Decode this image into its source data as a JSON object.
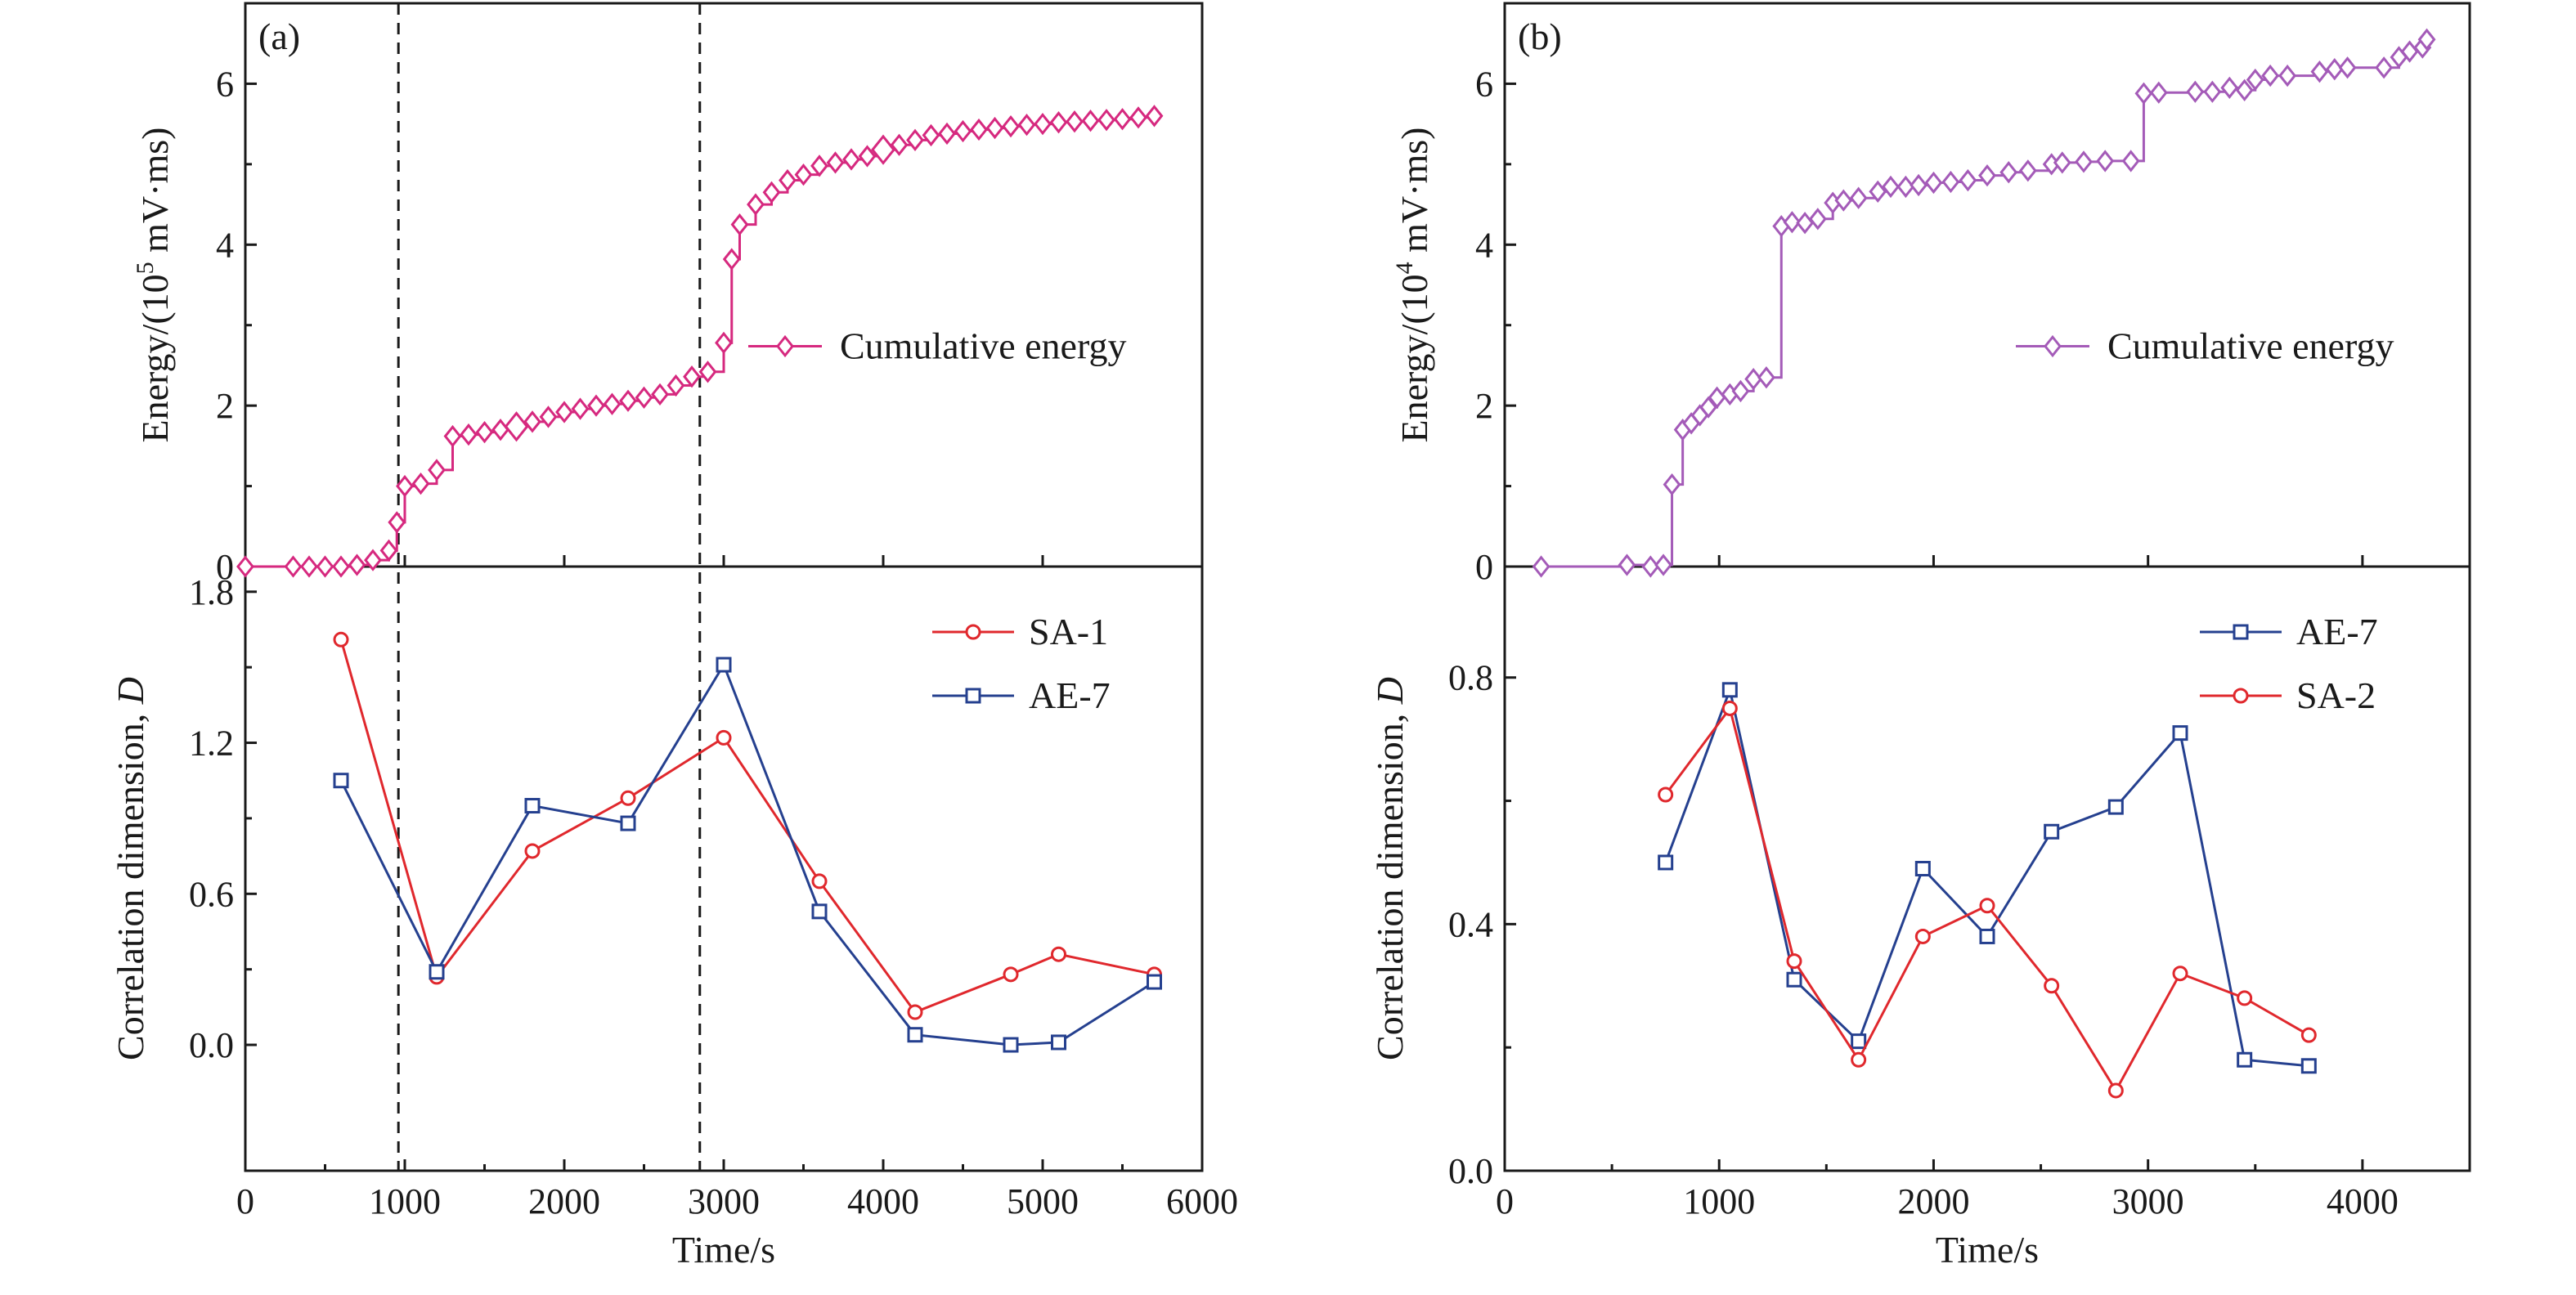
{
  "colors": {
    "energy_a": "#d6297f",
    "energy_b": "#a45bb8",
    "SA": "#e0282d",
    "AE": "#25408f",
    "axis": "#1a1a1a"
  },
  "chart_data": [
    {
      "id": "a",
      "type": "line",
      "panel_label": "(a)",
      "xlabel": "Time/s",
      "xlim": [
        0,
        6000
      ],
      "xticks": [
        0,
        1000,
        2000,
        3000,
        4000,
        5000,
        6000
      ],
      "dashed_lines_x": [
        960,
        2850
      ],
      "top": {
        "ylabel_parts": [
          "Energy/(10",
          "5",
          " mV·ms)"
        ],
        "ylim": [
          0,
          7
        ],
        "yticks": [
          0,
          2,
          4,
          6
        ],
        "series": [
          {
            "name": "Cumulative energy",
            "marker": "diamond",
            "color_key": "energy_a",
            "step": true,
            "big_points": [
              16,
              40
            ],
            "x": [
              0,
              300,
              400,
              500,
              600,
              700,
              800,
              900,
              950,
              1000,
              1100,
              1200,
              1300,
              1400,
              1500,
              1600,
              1700,
              1800,
              1900,
              2000,
              2100,
              2200,
              2300,
              2400,
              2500,
              2600,
              2700,
              2800,
              2900,
              3000,
              3050,
              3100,
              3200,
              3300,
              3400,
              3500,
              3600,
              3700,
              3800,
              3900,
              4000,
              4100,
              4200,
              4300,
              4400,
              4500,
              4600,
              4700,
              4800,
              4900,
              5000,
              5100,
              5200,
              5300,
              5400,
              5500,
              5600,
              5700
            ],
            "y": [
              0.0,
              0.0,
              0.0,
              0.0,
              0.0,
              0.02,
              0.08,
              0.2,
              0.55,
              1.0,
              1.03,
              1.2,
              1.62,
              1.64,
              1.67,
              1.7,
              1.74,
              1.8,
              1.86,
              1.92,
              1.96,
              2.0,
              2.02,
              2.06,
              2.1,
              2.14,
              2.25,
              2.36,
              2.42,
              2.78,
              3.82,
              4.25,
              4.5,
              4.65,
              4.8,
              4.87,
              4.98,
              5.02,
              5.06,
              5.1,
              5.18,
              5.24,
              5.3,
              5.36,
              5.38,
              5.41,
              5.43,
              5.45,
              5.47,
              5.49,
              5.5,
              5.52,
              5.53,
              5.54,
              5.55,
              5.56,
              5.58,
              5.6
            ]
          }
        ],
        "legend": {
          "loc": "right-middle"
        }
      },
      "bottom": {
        "ylabel": "Correlation dimension, ",
        "ylabel_italic": "D",
        "ylim": [
          -0.5,
          1.9
        ],
        "yticks": [
          0.0,
          0.6,
          1.2,
          1.8
        ],
        "ytick_labels": [
          "0.0",
          "0.6",
          "1.2",
          "1.8"
        ],
        "series": [
          {
            "name": "SA-1",
            "marker": "circle",
            "color_key": "SA",
            "x": [
              600,
              1200,
              1800,
              2400,
              3000,
              3600,
              4200,
              4800,
              5100,
              5700
            ],
            "y": [
              1.61,
              0.27,
              0.77,
              0.98,
              1.22,
              0.65,
              0.13,
              0.28,
              0.36,
              0.28
            ]
          },
          {
            "name": "AE-7",
            "marker": "square",
            "color_key": "AE",
            "x": [
              600,
              1200,
              1800,
              2400,
              3000,
              3600,
              4200,
              4800,
              5100,
              5700
            ],
            "y": [
              1.05,
              0.29,
              0.95,
              0.88,
              1.51,
              0.53,
              0.04,
              0.0,
              0.01,
              0.25
            ]
          }
        ],
        "legend": {
          "loc": "top-right"
        }
      }
    },
    {
      "id": "b",
      "type": "line",
      "panel_label": "(b)",
      "xlabel": "Time/s",
      "xlim": [
        0,
        4500
      ],
      "xticks": [
        0,
        1000,
        2000,
        3000,
        4000
      ],
      "dashed_lines_x": [],
      "top": {
        "ylabel_parts": [
          "Energy/(10",
          "4",
          " mV·ms)"
        ],
        "ylim": [
          0,
          7
        ],
        "yticks": [
          0,
          2,
          4,
          6
        ],
        "series": [
          {
            "name": "Cumulative energy",
            "marker": "diamond",
            "color_key": "energy_b",
            "step": true,
            "big_points": [],
            "x": [
              170,
              570,
              680,
              740,
              780,
              830,
              870,
              910,
              950,
              990,
              1050,
              1100,
              1160,
              1220,
              1290,
              1340,
              1400,
              1460,
              1530,
              1580,
              1650,
              1740,
              1800,
              1870,
              1930,
              2000,
              2080,
              2160,
              2250,
              2350,
              2440,
              2550,
              2600,
              2700,
              2800,
              2920,
              2980,
              3050,
              3220,
              3300,
              3380,
              3450,
              3500,
              3570,
              3650,
              3800,
              3870,
              3930,
              4100,
              4170,
              4220,
              4280,
              4300
            ],
            "y": [
              0.0,
              0.02,
              0.0,
              0.02,
              1.02,
              1.7,
              1.78,
              1.88,
              1.98,
              2.1,
              2.14,
              2.18,
              2.33,
              2.35,
              4.23,
              4.28,
              4.27,
              4.32,
              4.52,
              4.55,
              4.58,
              4.66,
              4.72,
              4.72,
              4.74,
              4.77,
              4.78,
              4.8,
              4.86,
              4.9,
              4.92,
              5.0,
              5.02,
              5.03,
              5.04,
              5.04,
              5.88,
              5.89,
              5.9,
              5.9,
              5.95,
              5.92,
              6.05,
              6.1,
              6.1,
              6.15,
              6.18,
              6.2,
              6.2,
              6.33,
              6.4,
              6.45,
              6.55
            ]
          }
        ],
        "legend": {
          "loc": "right-middle"
        }
      },
      "bottom": {
        "ylabel": "Correlation dimension, ",
        "ylabel_italic": "D",
        "ylim": [
          0.0,
          0.98
        ],
        "yticks": [
          0.0,
          0.4,
          0.8
        ],
        "ytick_labels": [
          "0.0",
          "0.4",
          "0.8"
        ],
        "series": [
          {
            "name": "AE-7",
            "marker": "square",
            "color_key": "AE",
            "x": [
              750,
              1050,
              1350,
              1650,
              1950,
              2250,
              2550,
              2850,
              3150,
              3450,
              3750
            ],
            "y": [
              0.5,
              0.78,
              0.31,
              0.21,
              0.49,
              0.38,
              0.55,
              0.59,
              0.71,
              0.18,
              0.17
            ]
          },
          {
            "name": "SA-2",
            "marker": "circle",
            "color_key": "SA",
            "x": [
              750,
              1050,
              1350,
              1650,
              1950,
              2250,
              2550,
              2850,
              3150,
              3450,
              3750
            ],
            "y": [
              0.61,
              0.75,
              0.34,
              0.18,
              0.38,
              0.43,
              0.3,
              0.13,
              0.32,
              0.28,
              0.22
            ]
          }
        ],
        "legend": {
          "loc": "top-right"
        }
      }
    }
  ]
}
